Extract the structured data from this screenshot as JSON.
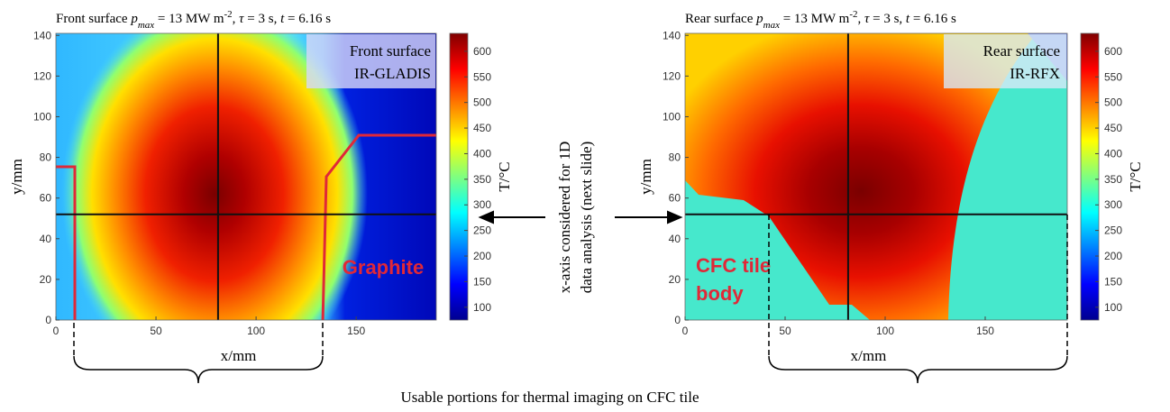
{
  "chart_data": [
    {
      "type": "heatmap",
      "title_parts": [
        "Front surface ",
        "p",
        "max",
        " = 13 MW m",
        "-2",
        ", ",
        "τ",
        " = 3 s, ",
        "t",
        " = 6.16 s"
      ],
      "xlabel": "x/mm",
      "ylabel": "y/mm",
      "xlim": [
        0,
        190
      ],
      "ylim": [
        0,
        141
      ],
      "xticks": [
        0,
        50,
        100,
        150
      ],
      "yticks": [
        0,
        20,
        40,
        60,
        80,
        100,
        120,
        140
      ],
      "colorbar": {
        "label": "T/°C",
        "lim": [
          75,
          635
        ],
        "ticks": [
          100,
          150,
          200,
          250,
          300,
          350,
          400,
          450,
          500,
          550,
          600
        ]
      },
      "annotations": [
        "Front surface",
        "IR-GLADIS",
        "Graphite"
      ]
    },
    {
      "type": "heatmap",
      "title_parts": [
        "Rear surface ",
        "p",
        "max",
        " = 13 MW m",
        "-2",
        ", ",
        "τ",
        " = 3 s, ",
        "t",
        " = 6.16 s"
      ],
      "xlabel": "x/mm",
      "ylabel": "y/mm",
      "xlim": [
        0,
        191
      ],
      "ylim": [
        0,
        141
      ],
      "xticks": [
        0,
        50,
        100,
        150
      ],
      "yticks": [
        0,
        20,
        40,
        60,
        80,
        100,
        120,
        140
      ],
      "colorbar": {
        "label": "T/°C",
        "lim": [
          75,
          635
        ],
        "ticks": [
          100,
          150,
          200,
          250,
          300,
          350,
          400,
          450,
          500,
          550,
          600
        ]
      },
      "annotations": [
        "Rear surface",
        "IR-RFX",
        "CFC tile",
        "body"
      ]
    }
  ],
  "middle_note": [
    "x-axis considered for 1D",
    "data analysis (next slide)"
  ],
  "caption": "Usable portions for thermal imaging on CFC tile"
}
